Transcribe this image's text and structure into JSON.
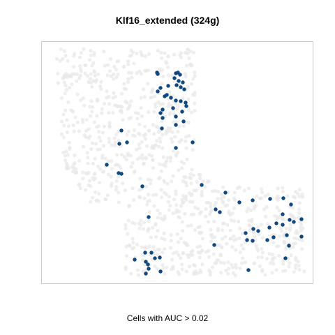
{
  "chart_data": {
    "type": "scatter",
    "title": "Klf16_extended (324g)",
    "xlabel": "Cells with AUC > 0.02",
    "ylabel": "",
    "grid": false,
    "legend": "none",
    "colors": {
      "highlight": "#0d4a86",
      "background": "#e8e8e8",
      "frame": "#c8c8c8"
    },
    "background_cells": {
      "color": "#e8e8e8",
      "shape": "L-shaped cloud: wide upper-left lobe with a lower-right arm",
      "count_approx": 1000
    },
    "series": [
      {
        "name": "Cells with AUC > 0.02",
        "color": "#0d4a86",
        "points": [
          [
            225,
            104
          ],
          [
            226,
            106
          ],
          [
            252,
            105
          ],
          [
            255,
            104
          ],
          [
            258,
            107
          ],
          [
            250,
            112
          ],
          [
            256,
            116
          ],
          [
            262,
            118
          ],
          [
            253,
            122
          ],
          [
            259,
            125
          ],
          [
            241,
            123
          ],
          [
            264,
            128
          ],
          [
            230,
            126
          ],
          [
            226,
            131
          ],
          [
            239,
            136
          ],
          [
            245,
            140
          ],
          [
            236,
            138
          ],
          [
            252,
            144
          ],
          [
            259,
            145
          ],
          [
            266,
            147
          ],
          [
            267,
            152
          ],
          [
            248,
            155
          ],
          [
            261,
            160
          ],
          [
            233,
            157
          ],
          [
            230,
            162
          ],
          [
            252,
            167
          ],
          [
            233,
            169
          ],
          [
            263,
            174
          ],
          [
            252,
            179
          ],
          [
            232,
            184
          ],
          [
            174,
            187
          ],
          [
            276,
            204
          ],
          [
            252,
            212
          ],
          [
            171,
            206
          ],
          [
            182,
            204
          ],
          [
            153,
            236
          ],
          [
            170,
            248
          ],
          [
            174,
            249
          ],
          [
            204,
            267
          ],
          [
            289,
            265
          ],
          [
            323,
            276
          ],
          [
            309,
            300
          ],
          [
            315,
            304
          ],
          [
            213,
            311
          ],
          [
            343,
            290
          ],
          [
            362,
            287
          ],
          [
            387,
            285
          ],
          [
            406,
            284
          ],
          [
            417,
            293
          ],
          [
            405,
            307
          ],
          [
            415,
            315
          ],
          [
            421,
            318
          ],
          [
            432,
            314
          ],
          [
            396,
            320
          ],
          [
            405,
            322
          ],
          [
            386,
            326
          ],
          [
            363,
            328
          ],
          [
            352,
            334
          ],
          [
            370,
            331
          ],
          [
            411,
            337
          ],
          [
            354,
            344
          ],
          [
            362,
            345
          ],
          [
            383,
            344
          ],
          [
            392,
            340
          ],
          [
            432,
            339
          ],
          [
            414,
            352
          ],
          [
            307,
            351
          ],
          [
            208,
            362
          ],
          [
            217,
            362
          ],
          [
            193,
            372
          ],
          [
            209,
            375
          ],
          [
            212,
            379
          ],
          [
            222,
            370
          ],
          [
            229,
            369
          ],
          [
            213,
            385
          ],
          [
            230,
            389
          ],
          [
            209,
            392
          ],
          [
            356,
            387
          ],
          [
            409,
            370
          ]
        ]
      }
    ]
  }
}
